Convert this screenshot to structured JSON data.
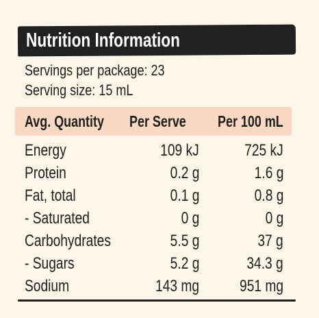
{
  "title": "Nutrition Information",
  "servings_per_package": "Servings per package: 23",
  "serving_size": "Serving size: 15 mL",
  "header": {
    "quantity": "Avg. Quantity",
    "per_serve": "Per Serve",
    "per_100": "Per 100 mL"
  },
  "rows": [
    {
      "name": "Energy",
      "per_serve": "109 kJ",
      "per_100": "725 kJ"
    },
    {
      "name": "Protein",
      "per_serve": "0.2 g",
      "per_100": "1.6 g"
    },
    {
      "name": "Fat, total",
      "per_serve": "0.1 g",
      "per_100": "0.8 g"
    },
    {
      "name": "- Saturated",
      "per_serve": "0 g",
      "per_100": "0 g"
    },
    {
      "name": "Carbohydrates",
      "per_serve": "5.5 g",
      "per_100": "37 g"
    },
    {
      "name": "- Sugars",
      "per_serve": "5.2 g",
      "per_100": "34.3 g"
    },
    {
      "name": "Sodium",
      "per_serve": "143 mg",
      "per_100": "951 mg"
    }
  ],
  "colors": {
    "background": "#fdf6e9",
    "title_bar": "#202222",
    "header_band": "#f9d9c3",
    "text": "#1e1e1e"
  }
}
